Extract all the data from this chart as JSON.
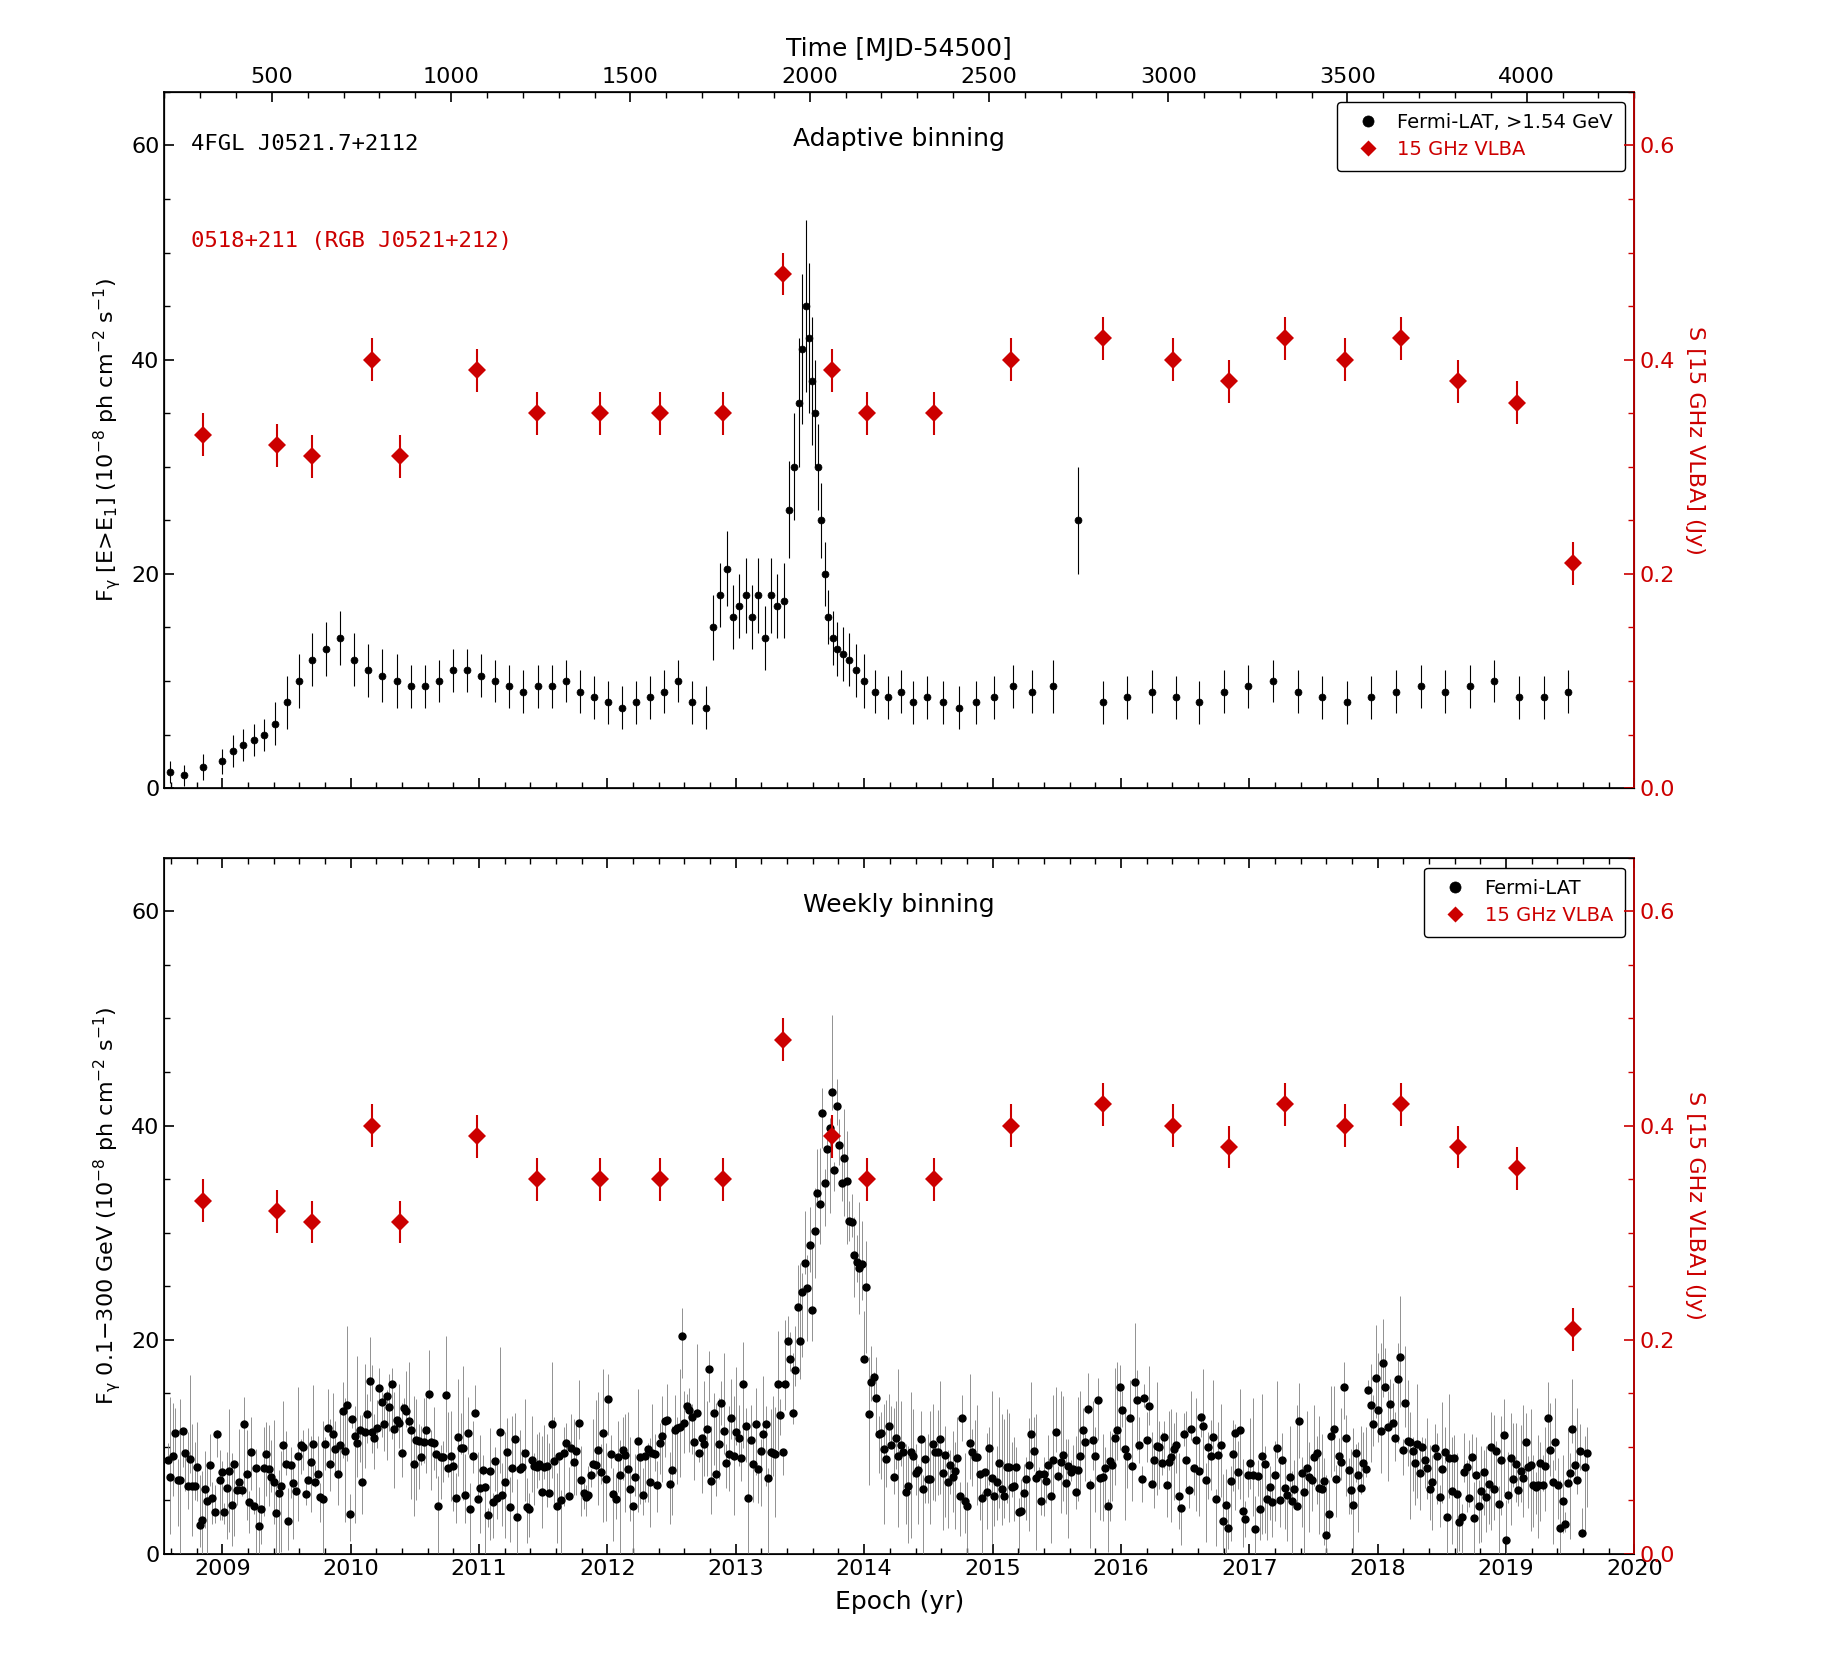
{
  "title_top": "Time [MJD-54500]",
  "xlabel": "Epoch (yr)",
  "ylabel_top_left": "F$_\\gamma$ [E>E$_1$] (10$^{-8}$ ph cm$^{-2}$ s$^{-1}$)",
  "ylabel_bottom_left": "F$_\\gamma$ 0.1-300 GeV (10$^{-8}$ ph cm$^{-2}$ s$^{-1}$)",
  "ylabel_right": "S [15 GHz VLBA] (Jy)",
  "label_top_binning": "Adaptive binning",
  "label_bottom_binning": "Weekly binning",
  "label_source1": "4FGL J0521.7+2112",
  "label_source2": "0518+211 (RGB J0521+212)",
  "legend_fermi_top": "Fermi-LAT, >1.54 GeV",
  "legend_vlba_top": "15 GHz VLBA",
  "legend_fermi_bottom": "Fermi-LAT",
  "legend_vlba_bottom": "15 GHz VLBA",
  "mjd_xlim": [
    200,
    4300
  ],
  "ylim_fermi": [
    0,
    65
  ],
  "ylim_vlba": [
    0,
    0.65
  ],
  "yticks_fermi": [
    0,
    20,
    40,
    60
  ],
  "yticks_vlba": [
    0.0,
    0.2,
    0.4,
    0.6
  ],
  "mjd_xticks": [
    500,
    1000,
    1500,
    2000,
    2500,
    3000,
    3500,
    4000
  ],
  "year_xticks": [
    2009,
    2010,
    2011,
    2012,
    2013,
    2014,
    2015,
    2016,
    2017,
    2018,
    2019,
    2020
  ],
  "vlba_x": [
    310,
    520,
    620,
    790,
    870,
    1090,
    1260,
    1440,
    1610,
    1790,
    1960,
    2100,
    2200,
    2390,
    2610,
    2870,
    3070,
    3230,
    3390,
    3560,
    3720,
    3880,
    4050,
    4210
  ],
  "vlba_y": [
    0.33,
    0.32,
    0.31,
    0.4,
    0.31,
    0.39,
    0.35,
    0.35,
    0.35,
    0.35,
    0.48,
    0.39,
    0.35,
    0.35,
    0.4,
    0.42,
    0.4,
    0.38,
    0.42,
    0.4,
    0.42,
    0.38,
    0.36,
    0.21
  ],
  "vlba_yerr": [
    0.02,
    0.02,
    0.02,
    0.02,
    0.02,
    0.02,
    0.02,
    0.02,
    0.02,
    0.02,
    0.02,
    0.02,
    0.02,
    0.02,
    0.02,
    0.02,
    0.02,
    0.02,
    0.02,
    0.02,
    0.02,
    0.02,
    0.02,
    0.02
  ],
  "bg_color": "#ffffff",
  "fermi_color": "#000000",
  "vlba_color": "#cc0000",
  "fermi_markersize": 5,
  "vlba_markersize": 9,
  "fermi_adaptive_x": [
    215,
    255,
    310,
    365,
    395,
    425,
    455,
    485,
    515,
    548,
    582,
    620,
    660,
    700,
    740,
    780,
    820,
    862,
    902,
    942,
    982,
    1022,
    1062,
    1102,
    1142,
    1182,
    1222,
    1262,
    1302,
    1342,
    1382,
    1422,
    1462,
    1502,
    1542,
    1582,
    1622,
    1662,
    1702,
    1742,
    1762,
    1782,
    1800,
    1818,
    1836,
    1854,
    1872,
    1890,
    1908,
    1926,
    1944,
    1962,
    1978,
    1992,
    2005,
    2015,
    2025,
    2034,
    2043,
    2052,
    2061,
    2070,
    2079,
    2090,
    2102,
    2115,
    2130,
    2148,
    2168,
    2192,
    2222,
    2260,
    2295,
    2330,
    2370,
    2415,
    2460,
    2510,
    2560,
    2615,
    2670,
    2730,
    2800,
    2870,
    2940,
    3010,
    3080,
    3145,
    3215,
    3285,
    3355,
    3425,
    3495,
    3565,
    3635,
    3705,
    3775,
    3845,
    3915,
    3985,
    4055,
    4125,
    4195
  ],
  "fermi_adaptive_y": [
    1.5,
    1.2,
    2.0,
    2.5,
    3.5,
    4.0,
    4.5,
    5.0,
    6.0,
    8.0,
    10.0,
    12.0,
    13.0,
    14.0,
    12.0,
    11.0,
    10.5,
    10.0,
    9.5,
    9.5,
    10.0,
    11.0,
    11.0,
    10.5,
    10.0,
    9.5,
    9.0,
    9.5,
    9.5,
    10.0,
    9.0,
    8.5,
    8.0,
    7.5,
    8.0,
    8.5,
    9.0,
    10.0,
    8.0,
    7.5,
    15.0,
    18.0,
    20.5,
    16.0,
    17.0,
    18.0,
    16.0,
    18.0,
    14.0,
    18.0,
    17.0,
    17.5,
    26.0,
    30.0,
    36.0,
    41.0,
    45.0,
    42.0,
    38.0,
    35.0,
    30.0,
    25.0,
    20.0,
    16.0,
    14.0,
    13.0,
    12.5,
    12.0,
    11.0,
    10.0,
    9.0,
    8.5,
    9.0,
    8.0,
    8.5,
    8.0,
    7.5,
    8.0,
    8.5,
    9.5,
    9.0,
    9.5,
    25.0,
    8.0,
    8.5,
    9.0,
    8.5,
    8.0,
    9.0,
    9.5,
    10.0,
    9.0,
    8.5,
    8.0,
    8.5,
    9.0,
    9.5,
    9.0,
    9.5,
    10.0,
    8.5,
    8.5,
    9.0
  ],
  "fermi_adaptive_yerr": [
    1.0,
    1.0,
    1.2,
    1.2,
    1.5,
    1.5,
    1.5,
    1.5,
    2.0,
    2.5,
    2.5,
    2.5,
    2.5,
    2.5,
    2.5,
    2.5,
    2.5,
    2.5,
    2.0,
    2.0,
    2.0,
    2.0,
    2.0,
    2.0,
    2.0,
    2.0,
    2.0,
    2.0,
    2.0,
    2.0,
    2.0,
    2.0,
    2.0,
    2.0,
    2.0,
    2.0,
    2.0,
    2.0,
    2.0,
    2.0,
    3.0,
    3.0,
    3.5,
    3.0,
    3.0,
    3.5,
    3.0,
    3.5,
    3.0,
    3.5,
    3.0,
    3.5,
    4.5,
    5.0,
    6.0,
    7.0,
    8.0,
    7.0,
    6.0,
    5.0,
    4.0,
    3.5,
    3.0,
    2.5,
    2.5,
    2.5,
    2.5,
    2.5,
    2.5,
    2.5,
    2.0,
    2.0,
    2.0,
    2.0,
    2.0,
    2.0,
    2.0,
    2.0,
    2.0,
    2.0,
    2.0,
    2.5,
    5.0,
    2.0,
    2.0,
    2.0,
    2.0,
    2.0,
    2.0,
    2.0,
    2.0,
    2.0,
    2.0,
    2.0,
    2.0,
    2.0,
    2.0,
    2.0,
    2.0,
    2.0,
    2.0,
    2.0,
    2.0
  ]
}
